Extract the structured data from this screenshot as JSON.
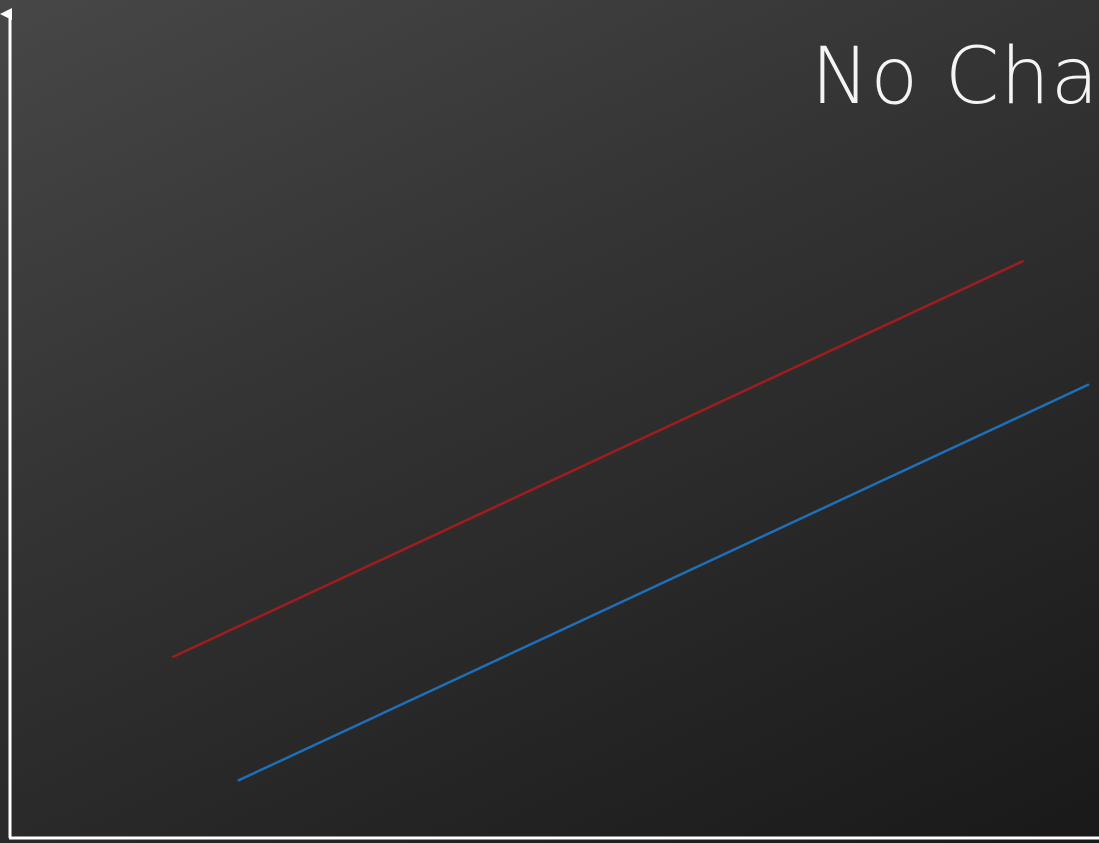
{
  "title": "No Char",
  "chart_data": {
    "type": "line",
    "title": "No Char",
    "xlabel": "",
    "ylabel": "",
    "grid": false,
    "xlim": [
      0,
      100
    ],
    "ylim": [
      0,
      100
    ],
    "series": [
      {
        "color": "#a11c1c",
        "x": [
          15,
          93
        ],
        "y": [
          22,
          70
        ]
      },
      {
        "color": "#1f6fb8",
        "x": [
          21,
          99
        ],
        "y": [
          7,
          55
        ]
      }
    ]
  }
}
